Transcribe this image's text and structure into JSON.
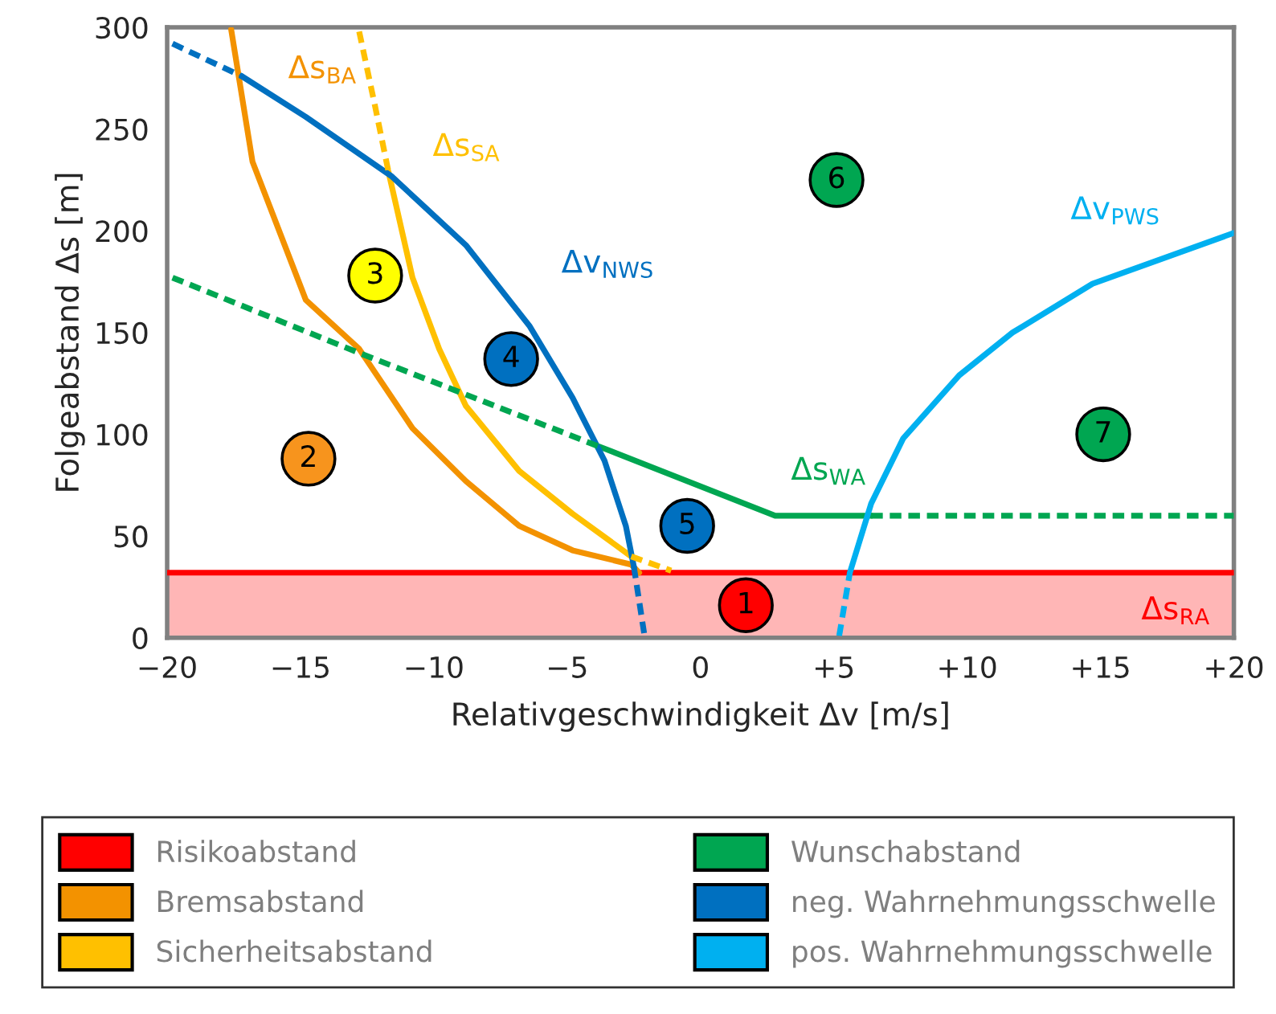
{
  "chart_data": {
    "type": "line",
    "xlabel": "Relativgeschwindigkeit Δv [m/s]",
    "ylabel": "Folgeabstand Δs [m]",
    "xlim": [
      -20,
      20
    ],
    "xticks": [
      {
        "value": -20,
        "label": "−20"
      },
      {
        "value": -15,
        "label": "−15"
      },
      {
        "value": -10,
        "label": "−10"
      },
      {
        "value": -5,
        "label": "−5"
      },
      0,
      {
        "value": 5,
        "label": "+5"
      },
      {
        "value": 10,
        "label": "+10"
      },
      {
        "value": 15,
        "label": "+15"
      },
      {
        "value": 20,
        "label": "+20"
      }
    ],
    "ylim": [
      0,
      300
    ],
    "yticks": [
      0,
      50,
      100,
      150,
      200,
      250,
      300
    ],
    "grid": false,
    "legend": "bottom",
    "series": [
      {
        "name": "Risikoabstand",
        "color": "#ff0000",
        "x": [
          -20,
          20
        ],
        "values": [
          32,
          32
        ]
      },
      {
        "name": "Bremsabstand",
        "color": "#f39200",
        "x": [
          -17.6,
          -16.8,
          -14.8,
          -12.8,
          -10.8,
          -8.8,
          -6.8,
          -4.8,
          -2.6,
          -2.3
        ],
        "values": [
          299,
          234,
          166,
          142,
          103,
          77,
          55,
          43,
          36,
          32
        ]
      },
      {
        "name": "Sicherheitsabstand",
        "color": "#ffc000",
        "x": [
          -11.7,
          -10.8,
          -9.8,
          -8.8,
          -6.8,
          -4.8,
          -2.6
        ],
        "values": [
          229,
          177,
          142,
          114,
          82,
          61,
          40
        ]
      },
      {
        "name": "Wunschabstand",
        "color": "#00a651",
        "x": [
          -3.8,
          2.8,
          6.4
        ],
        "values": [
          94,
          60,
          60
        ]
      },
      {
        "name": "neg. Wahrnehmungsschwelle",
        "color": "#0070c0",
        "x": [
          -17.2,
          -14.8,
          -11.6,
          -8.8,
          -6.4,
          -4.8,
          -3.6,
          -2.8,
          -2.5
        ],
        "values": [
          276,
          256,
          227,
          193,
          153,
          118,
          87,
          55,
          35
        ]
      },
      {
        "name": "pos. Wahrnehmungsschwelle",
        "color": "#00b0f0",
        "x": [
          5.6,
          6.4,
          7.6,
          9.7,
          11.7,
          14.7,
          20
        ],
        "values": [
          32,
          66,
          98,
          129,
          150,
          174,
          199
        ]
      },
      {
        "color": "#ffc000",
        "line_style": "dashed",
        "x": [
          -12.8,
          -12.2,
          -11.7
        ],
        "values": [
          298,
          261,
          229
        ]
      },
      {
        "color": "#ffc000",
        "line_style": "dashed",
        "x": [
          -2.6,
          -1.1
        ],
        "values": [
          40,
          33
        ]
      },
      {
        "color": "#00a651",
        "line_style": "dashed",
        "x": [
          -19.8,
          -12.8,
          -3.8
        ],
        "values": [
          177,
          140,
          94
        ]
      },
      {
        "color": "#00a651",
        "line_style": "dashed",
        "x": [
          6.4,
          20
        ],
        "values": [
          60,
          60
        ]
      },
      {
        "color": "#0070c0",
        "line_style": "dashed",
        "x": [
          -19.8,
          -17.2
        ],
        "values": [
          292,
          276
        ]
      },
      {
        "color": "#0070c0",
        "line_style": "dashed",
        "x": [
          -2.5,
          -2.1
        ],
        "values": [
          35,
          1
        ]
      },
      {
        "color": "#00b0f0",
        "line_style": "dashed",
        "x": [
          5.2,
          5.6
        ],
        "values": [
          1,
          32
        ]
      },
      {
        "type": "scatter",
        "x": [
          1.7,
          -14.7,
          -12.2,
          -7.1,
          -0.5,
          5.1,
          15.1
        ],
        "values": [
          16,
          88,
          178,
          137,
          55,
          225,
          100
        ],
        "colors": [
          "#ff0000",
          "#f7941d",
          "#ffff00",
          "#0070c0",
          "#0070c0",
          "#00a651",
          "#00a651"
        ]
      }
    ],
    "bands": [
      {
        "axis": "y",
        "from": 0,
        "to": 32,
        "color": "#ffb6b6"
      }
    ],
    "annotations": [
      {
        "text": "Δs$_{RA}$",
        "x": 20,
        "y": 32
      },
      {
        "text": "Δs$_{BA}$",
        "x": -17.6,
        "y": 299
      },
      {
        "text": "Δs$_{SA}$",
        "x": -11.7,
        "y": 229
      },
      {
        "text": "Δs$_{WA}$",
        "x": 2.8,
        "y": 60
      },
      {
        "text": "Δv$_{NWS}$",
        "x": -6.4,
        "y": 153
      },
      {
        "text": "Δv$_{PWS}$",
        "x": 20,
        "y": 199
      },
      {
        "text": "1",
        "x": 1.7,
        "y": 16
      },
      {
        "text": "2",
        "x": -14.7,
        "y": 88
      },
      {
        "text": "3",
        "x": -12.2,
        "y": 178
      },
      {
        "text": "4",
        "x": -7.1,
        "y": 137
      },
      {
        "text": "5",
        "x": -0.5,
        "y": 55
      },
      {
        "text": "6",
        "x": 5.1,
        "y": 225
      },
      {
        "text": "7",
        "x": 15.1,
        "y": 100
      }
    ]
  }
}
